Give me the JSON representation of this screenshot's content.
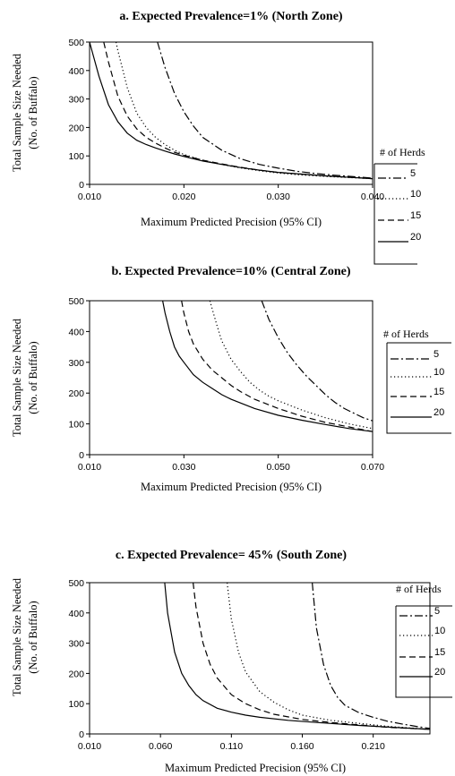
{
  "chart_data": [
    {
      "type": "line",
      "title": "a. Expected Prevalence=1% (North Zone)",
      "xlabel": "Maximum Predicted Precision (95% CI)",
      "ylabel": [
        "Total Sample Size Needed",
        "(No. of Buffalo)"
      ],
      "xlim": [
        0.01,
        0.04
      ],
      "ylim": [
        0,
        500
      ],
      "xticks": [
        "0.010",
        "0.020",
        "0.030",
        "0.040"
      ],
      "yticks": [
        "0",
        "100",
        "200",
        "300",
        "400",
        "500"
      ],
      "legend_title": "# of Herds",
      "series": [
        {
          "name": "5",
          "style": "dashdot",
          "x": [
            0.0172,
            0.018,
            0.019,
            0.02,
            0.021,
            0.022,
            0.024,
            0.026,
            0.028,
            0.03,
            0.032,
            0.034,
            0.036,
            0.038,
            0.04
          ],
          "y": [
            500,
            410,
            320,
            255,
            205,
            165,
            120,
            90,
            70,
            57,
            46,
            38,
            32,
            27,
            22
          ]
        },
        {
          "name": "10",
          "style": "dotted",
          "x": [
            0.0128,
            0.013,
            0.014,
            0.015,
            0.016,
            0.017,
            0.018,
            0.019,
            0.02,
            0.022,
            0.024,
            0.026,
            0.028,
            0.03,
            0.032,
            0.035,
            0.04
          ],
          "y": [
            500,
            470,
            340,
            250,
            200,
            165,
            140,
            120,
            105,
            85,
            70,
            58,
            48,
            40,
            34,
            28,
            20
          ]
        },
        {
          "name": "15",
          "style": "dashed",
          "x": [
            0.0115,
            0.012,
            0.013,
            0.014,
            0.015,
            0.016,
            0.017,
            0.018,
            0.019,
            0.02,
            0.022,
            0.024,
            0.026,
            0.028,
            0.03,
            0.035,
            0.04
          ],
          "y": [
            500,
            430,
            310,
            240,
            195,
            165,
            145,
            128,
            113,
            102,
            85,
            72,
            60,
            50,
            42,
            30,
            20
          ]
        },
        {
          "name": "20",
          "style": "solid",
          "x": [
            0.01,
            0.011,
            0.012,
            0.013,
            0.014,
            0.015,
            0.016,
            0.017,
            0.018,
            0.019,
            0.02,
            0.022,
            0.024,
            0.026,
            0.028,
            0.03,
            0.035,
            0.04
          ],
          "y": [
            500,
            380,
            280,
            220,
            180,
            155,
            140,
            128,
            117,
            107,
            98,
            82,
            70,
            59,
            50,
            42,
            30,
            20
          ]
        }
      ]
    },
    {
      "type": "line",
      "title": "b. Expected Prevalence=10% (Central Zone)",
      "xlabel": "Maximum Predicted Precision (95% CI)",
      "ylabel": [
        "Total Sample Size Needed",
        "(No. of Buffalo)"
      ],
      "xlim": [
        0.01,
        0.07
      ],
      "ylim": [
        0,
        500
      ],
      "xticks": [
        "0.010",
        "0.030",
        "0.050",
        "0.070"
      ],
      "yticks": [
        "0",
        "100",
        "200",
        "300",
        "400",
        "500"
      ],
      "legend_title": "# of Herds",
      "series": [
        {
          "name": "5",
          "style": "dashdot",
          "x": [
            0.0465,
            0.048,
            0.05,
            0.052,
            0.054,
            0.056,
            0.058,
            0.06,
            0.062,
            0.064,
            0.066,
            0.068,
            0.07
          ],
          "y": [
            500,
            440,
            380,
            330,
            290,
            255,
            225,
            195,
            170,
            150,
            135,
            120,
            110
          ]
        },
        {
          "name": "10",
          "style": "dotted",
          "x": [
            0.0355,
            0.037,
            0.038,
            0.04,
            0.042,
            0.044,
            0.046,
            0.048,
            0.05,
            0.055,
            0.06,
            0.065,
            0.07
          ],
          "y": [
            500,
            420,
            370,
            310,
            270,
            235,
            210,
            190,
            175,
            145,
            120,
            100,
            85
          ]
        },
        {
          "name": "15",
          "style": "dashed",
          "x": [
            0.0295,
            0.03,
            0.031,
            0.032,
            0.034,
            0.036,
            0.038,
            0.04,
            0.042,
            0.045,
            0.05,
            0.055,
            0.06,
            0.065,
            0.07
          ],
          "y": [
            500,
            460,
            400,
            360,
            310,
            275,
            250,
            225,
            205,
            180,
            150,
            125,
            105,
            90,
            75
          ]
        },
        {
          "name": "20",
          "style": "solid",
          "x": [
            0.0255,
            0.026,
            0.027,
            0.028,
            0.029,
            0.03,
            0.032,
            0.034,
            0.036,
            0.038,
            0.04,
            0.045,
            0.05,
            0.055,
            0.06,
            0.065,
            0.07
          ],
          "y": [
            500,
            460,
            400,
            350,
            320,
            300,
            260,
            235,
            215,
            195,
            180,
            150,
            128,
            112,
            98,
            85,
            75
          ]
        }
      ]
    },
    {
      "type": "line",
      "title": "c. Expected Prevalence= 45% (South Zone)",
      "xlabel": "Maximum Predicted Precision (95% CI)",
      "ylabel": [
        "Total Sample Size Needed",
        "(No. of Buffalo)"
      ],
      "xlim": [
        0.01,
        0.25
      ],
      "ylim": [
        0,
        500
      ],
      "xticks": [
        "0.010",
        "0.060",
        "0.110",
        "0.160",
        "0.210"
      ],
      "yticks": [
        "0",
        "100",
        "200",
        "300",
        "400",
        "500"
      ],
      "legend_title": "# of Herds",
      "series": [
        {
          "name": "5",
          "style": "dashdot",
          "x": [
            0.167,
            0.17,
            0.175,
            0.18,
            0.185,
            0.19,
            0.2,
            0.21,
            0.22,
            0.23,
            0.24,
            0.25
          ],
          "y": [
            500,
            350,
            230,
            160,
            120,
            95,
            70,
            55,
            42,
            33,
            25,
            18
          ]
        },
        {
          "name": "10",
          "style": "dotted",
          "x": [
            0.107,
            0.11,
            0.115,
            0.12,
            0.13,
            0.14,
            0.15,
            0.16,
            0.18,
            0.2,
            0.22,
            0.25
          ],
          "y": [
            500,
            380,
            270,
            205,
            140,
            105,
            80,
            62,
            45,
            35,
            25,
            15
          ]
        },
        {
          "name": "15",
          "style": "dashed",
          "x": [
            0.083,
            0.085,
            0.09,
            0.095,
            0.1,
            0.11,
            0.12,
            0.13,
            0.14,
            0.16,
            0.18,
            0.2,
            0.22,
            0.25
          ],
          "y": [
            500,
            420,
            300,
            230,
            185,
            130,
            100,
            80,
            65,
            48,
            38,
            30,
            22,
            15
          ]
        },
        {
          "name": "20",
          "style": "solid",
          "x": [
            0.063,
            0.065,
            0.07,
            0.075,
            0.08,
            0.085,
            0.09,
            0.1,
            0.11,
            0.12,
            0.13,
            0.15,
            0.17,
            0.2,
            0.25
          ],
          "y": [
            500,
            400,
            270,
            200,
            160,
            130,
            110,
            85,
            72,
            62,
            55,
            45,
            38,
            28,
            15
          ]
        }
      ]
    }
  ]
}
